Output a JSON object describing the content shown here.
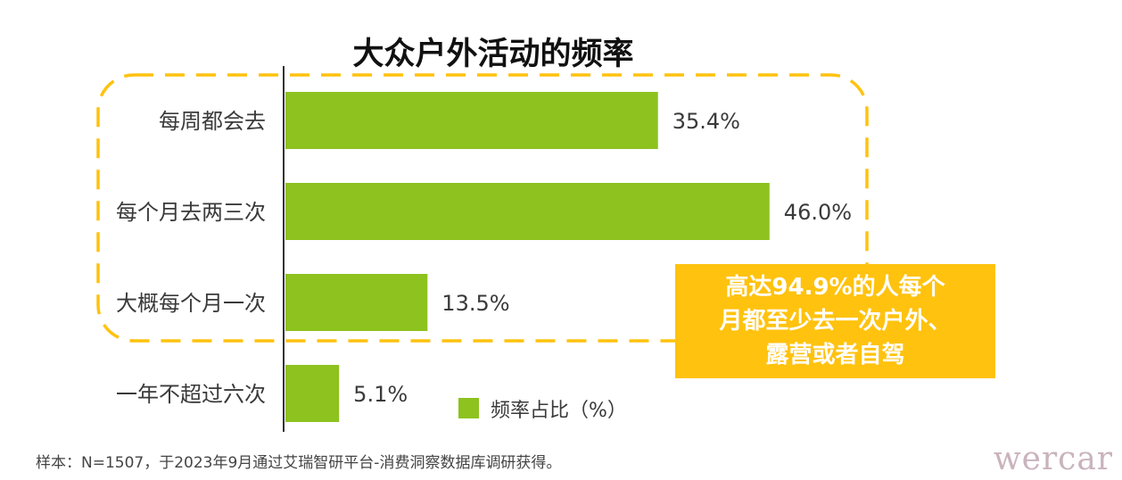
{
  "chart_data": {
    "type": "bar",
    "orientation": "horizontal",
    "title": "大众户外活动的频率",
    "categories": [
      "每周都会去",
      "每个月去两三次",
      "大概每个月一次",
      "一年不超过六次"
    ],
    "series": [
      {
        "name": "频率占比（%）",
        "values": [
          35.4,
          46.0,
          13.5,
          5.1
        ],
        "labels": [
          "35.4%",
          "46.0%",
          "13.5%",
          "5.1%"
        ],
        "color": "#8dc21f"
      }
    ],
    "xlim": [
      0,
      50
    ],
    "grid": false,
    "legend_position": "bottom-right",
    "highlight": {
      "style": "dashed-rounded-box",
      "color": "#ffc20e",
      "categories": [
        "每周都会去",
        "每个月去两三次",
        "大概每个月一次"
      ]
    }
  },
  "callout": {
    "lines": [
      "高达94.9%的人每个",
      "月都至少去一次户外、",
      "露营或者自驾"
    ],
    "background": "#ffc20e"
  },
  "source_note": "样本：N=1507，于2023年9月通过艾瑞智研平台-消费洞察数据库调研获得。",
  "watermark": "wercar"
}
